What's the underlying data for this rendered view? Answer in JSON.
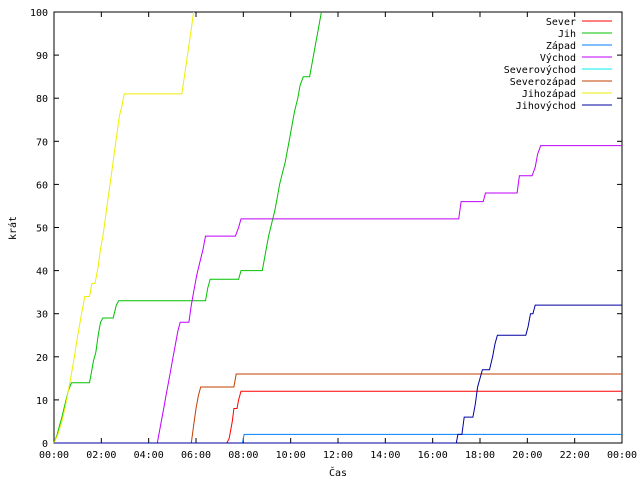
{
  "chart_data": {
    "type": "line",
    "title": "",
    "xlabel": "Čas",
    "ylabel": "krát",
    "xlim": [
      0,
      1440
    ],
    "ylim": [
      0,
      100
    ],
    "grid": false,
    "legend_position": "top-right",
    "x_ticks": [
      0,
      120,
      240,
      360,
      480,
      600,
      720,
      840,
      960,
      1080,
      1200,
      1320,
      1440
    ],
    "x_tick_labels": [
      "00:00",
      "02:00",
      "04:00",
      "06:00",
      "08:00",
      "10:00",
      "12:00",
      "14:00",
      "16:00",
      "18:00",
      "20:00",
      "22:00",
      "00:00"
    ],
    "y_ticks": [
      0,
      10,
      20,
      30,
      40,
      50,
      60,
      70,
      80,
      90,
      100
    ],
    "x_unit": "minutes since 00:00",
    "series": [
      {
        "name": "Sever",
        "color": "#ff0000",
        "points": [
          [
            0,
            0
          ],
          [
            438,
            0
          ],
          [
            444,
            1
          ],
          [
            448,
            3
          ],
          [
            452,
            5
          ],
          [
            456,
            8
          ],
          [
            464,
            8
          ],
          [
            468,
            10
          ],
          [
            474,
            12
          ],
          [
            1440,
            12
          ]
        ]
      },
      {
        "name": "Jih",
        "color": "#00c000",
        "points": [
          [
            0,
            0
          ],
          [
            8,
            2
          ],
          [
            14,
            4
          ],
          [
            20,
            6
          ],
          [
            28,
            9
          ],
          [
            36,
            12
          ],
          [
            44,
            14
          ],
          [
            90,
            14
          ],
          [
            96,
            17
          ],
          [
            100,
            19
          ],
          [
            106,
            21
          ],
          [
            112,
            25
          ],
          [
            118,
            28
          ],
          [
            124,
            29
          ],
          [
            150,
            29
          ],
          [
            158,
            32
          ],
          [
            164,
            33
          ],
          [
            384,
            33
          ],
          [
            390,
            36
          ],
          [
            396,
            38
          ],
          [
            468,
            38
          ],
          [
            474,
            40
          ],
          [
            528,
            40
          ],
          [
            536,
            44
          ],
          [
            544,
            48
          ],
          [
            552,
            51
          ],
          [
            560,
            54
          ],
          [
            566,
            57
          ],
          [
            572,
            60
          ],
          [
            580,
            63
          ],
          [
            586,
            65
          ],
          [
            592,
            68
          ],
          [
            598,
            71
          ],
          [
            604,
            74
          ],
          [
            610,
            77
          ],
          [
            618,
            80
          ],
          [
            624,
            83
          ],
          [
            632,
            85
          ],
          [
            648,
            85
          ],
          [
            656,
            89
          ],
          [
            664,
            93
          ],
          [
            670,
            96
          ],
          [
            678,
            100
          ]
        ]
      },
      {
        "name": "Západ",
        "color": "#0080ff",
        "points": [
          [
            0,
            0
          ],
          [
            478,
            0
          ],
          [
            482,
            2
          ],
          [
            1440,
            2
          ]
        ]
      },
      {
        "name": "Východ",
        "color": "#c000ff",
        "points": [
          [
            0,
            0
          ],
          [
            262,
            0
          ],
          [
            266,
            2
          ],
          [
            272,
            5
          ],
          [
            278,
            8
          ],
          [
            284,
            11
          ],
          [
            290,
            14
          ],
          [
            296,
            17
          ],
          [
            302,
            20
          ],
          [
            308,
            23
          ],
          [
            314,
            26
          ],
          [
            320,
            28
          ],
          [
            342,
            28
          ],
          [
            348,
            32
          ],
          [
            356,
            36
          ],
          [
            362,
            39
          ],
          [
            370,
            42
          ],
          [
            378,
            45
          ],
          [
            384,
            48
          ],
          [
            460,
            48
          ],
          [
            468,
            50
          ],
          [
            474,
            52
          ],
          [
            1026,
            52
          ],
          [
            1032,
            56
          ],
          [
            1088,
            56
          ],
          [
            1094,
            58
          ],
          [
            1174,
            58
          ],
          [
            1180,
            62
          ],
          [
            1212,
            62
          ],
          [
            1220,
            64
          ],
          [
            1226,
            67
          ],
          [
            1234,
            69
          ],
          [
            1440,
            69
          ]
        ]
      },
      {
        "name": "Severovýchod",
        "color": "#00eeee",
        "points": []
      },
      {
        "name": "Severozápad",
        "color": "#c04000",
        "points": [
          [
            0,
            0
          ],
          [
            348,
            0
          ],
          [
            354,
            4
          ],
          [
            360,
            8
          ],
          [
            366,
            11
          ],
          [
            372,
            13
          ],
          [
            456,
            13
          ],
          [
            462,
            16
          ],
          [
            1440,
            16
          ]
        ]
      },
      {
        "name": "Jihozápad",
        "color": "#eeee00",
        "points": [
          [
            0,
            0
          ],
          [
            10,
            2
          ],
          [
            20,
            5
          ],
          [
            30,
            9
          ],
          [
            40,
            14
          ],
          [
            50,
            19
          ],
          [
            60,
            25
          ],
          [
            70,
            30
          ],
          [
            78,
            34
          ],
          [
            90,
            34
          ],
          [
            96,
            37
          ],
          [
            104,
            37
          ],
          [
            112,
            41
          ],
          [
            118,
            45
          ],
          [
            124,
            48
          ],
          [
            130,
            52
          ],
          [
            136,
            56
          ],
          [
            142,
            60
          ],
          [
            148,
            64
          ],
          [
            154,
            68
          ],
          [
            160,
            72
          ],
          [
            166,
            76
          ],
          [
            172,
            78
          ],
          [
            178,
            81
          ],
          [
            324,
            81
          ],
          [
            332,
            86
          ],
          [
            340,
            91
          ],
          [
            348,
            96
          ],
          [
            354,
            100
          ]
        ]
      },
      {
        "name": "Jihovýchod",
        "color": "#0000a0",
        "points": [
          [
            0,
            0
          ],
          [
            1020,
            0
          ],
          [
            1024,
            2
          ],
          [
            1034,
            2
          ],
          [
            1040,
            6
          ],
          [
            1062,
            6
          ],
          [
            1068,
            9
          ],
          [
            1074,
            13
          ],
          [
            1080,
            15
          ],
          [
            1086,
            17
          ],
          [
            1104,
            17
          ],
          [
            1112,
            20
          ],
          [
            1118,
            23
          ],
          [
            1124,
            25
          ],
          [
            1196,
            25
          ],
          [
            1202,
            27
          ],
          [
            1208,
            30
          ],
          [
            1214,
            30
          ],
          [
            1220,
            32
          ],
          [
            1440,
            32
          ]
        ]
      }
    ]
  }
}
